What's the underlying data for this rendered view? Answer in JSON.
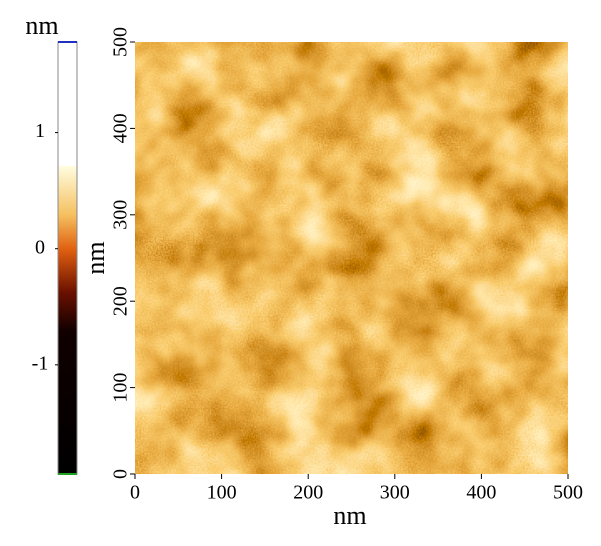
{
  "chart_data": {
    "type": "image",
    "x_label": "nm",
    "y_label": "nm",
    "xlim": [
      0,
      500
    ],
    "ylim": [
      0,
      500
    ],
    "xticks": [
      0,
      100,
      200,
      300,
      400,
      500
    ],
    "yticks": [
      0,
      100,
      200,
      300,
      400,
      500
    ],
    "colorbar": {
      "label": "nm",
      "lim": [
        -1.94,
        1.78
      ],
      "ticks": [
        -1,
        0,
        1
      ]
    }
  }
}
